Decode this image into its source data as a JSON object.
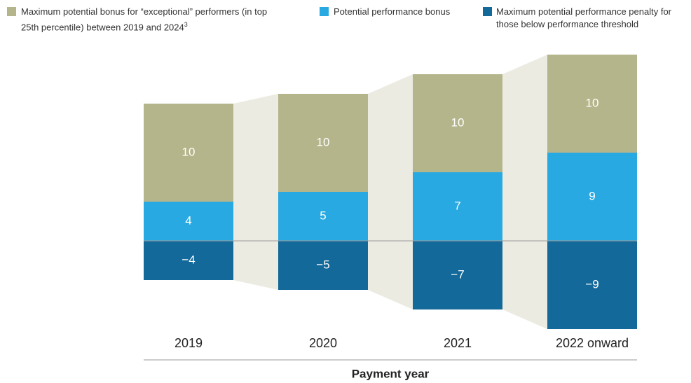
{
  "chart_data": {
    "type": "stacked-bar",
    "x_label": "Payment year",
    "categories": [
      "2019",
      "2020",
      "2021",
      "2022 onward"
    ],
    "series": [
      {
        "name": "Maximum potential performance penalty for those below performance threshold",
        "color": "#13699a",
        "values": [
          -4,
          -5,
          -7,
          -9
        ],
        "value_labels": [
          "−4",
          "−5",
          "−7",
          "−9"
        ]
      },
      {
        "name": "Potential performance bonus",
        "color": "#29a9e1",
        "values": [
          4,
          5,
          7,
          9
        ]
      },
      {
        "name": "Maximum potential bonus for “exceptional” performers (in top 25th percentile) between 2019 and 2024",
        "legend_note": "3",
        "color": "#b5b58c",
        "values": [
          10,
          10,
          10,
          10
        ]
      }
    ]
  }
}
